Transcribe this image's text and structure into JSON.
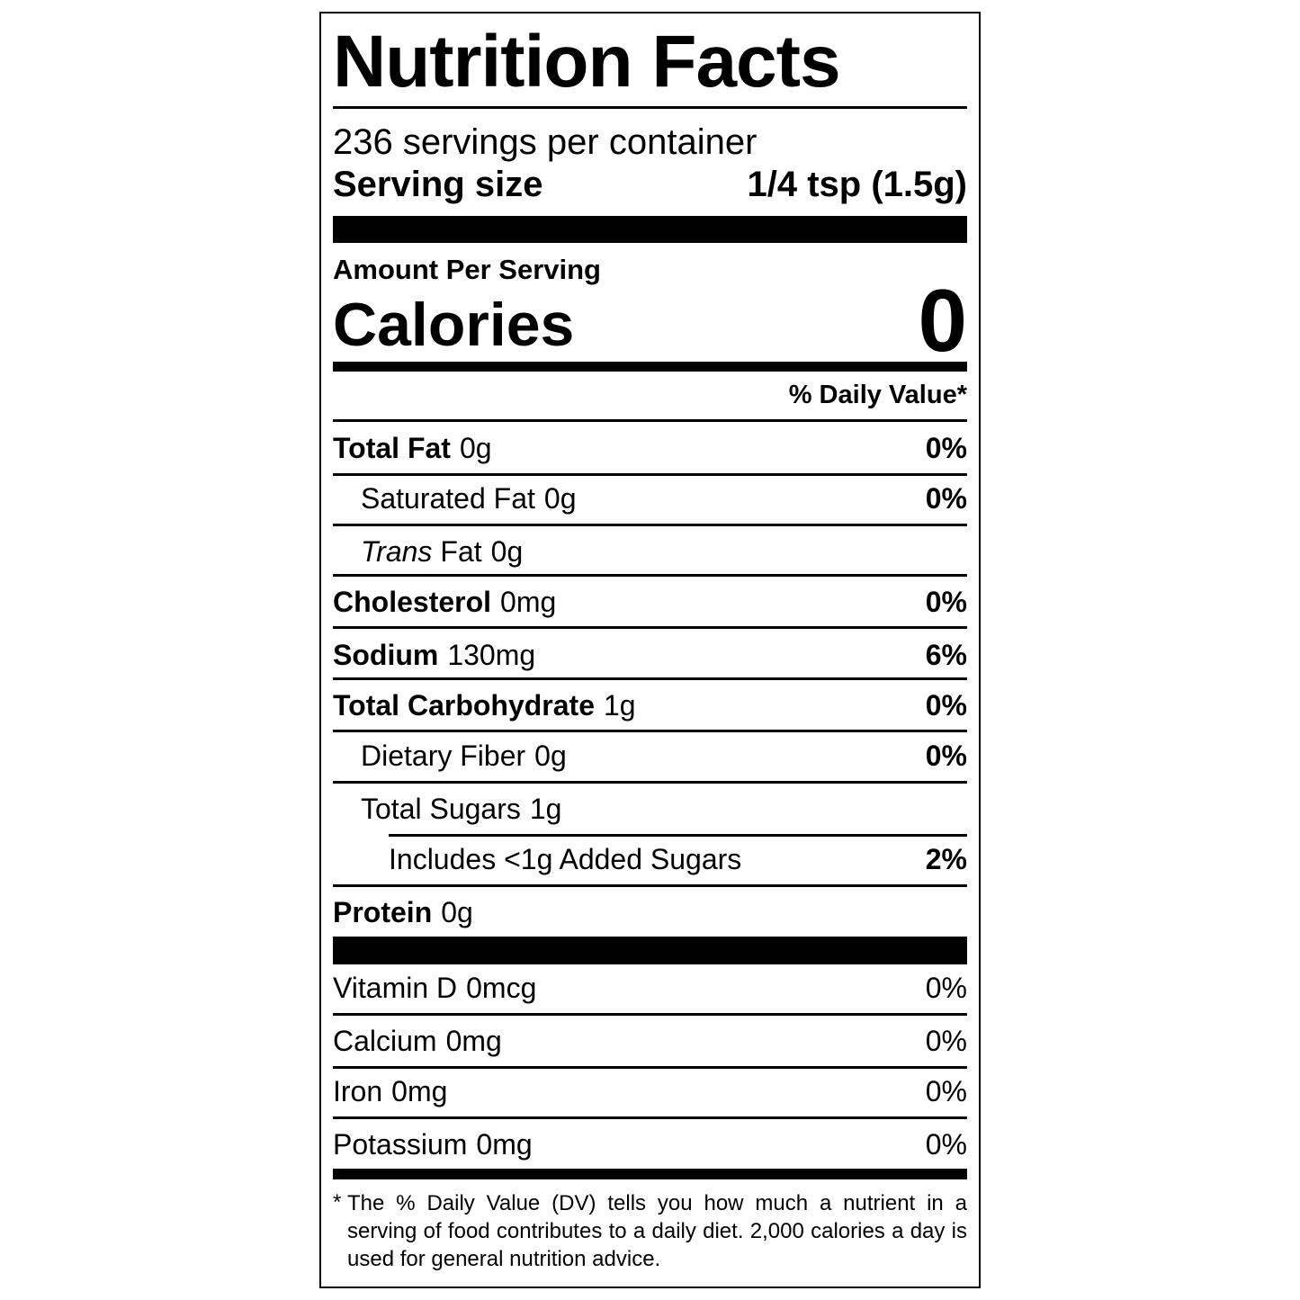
{
  "header": {
    "title": "Nutrition Facts",
    "servings": "236 servings per container",
    "serving_size_label": "Serving size",
    "serving_size_value": "1/4 tsp (1.5g)"
  },
  "calories": {
    "amount_per_serving": "Amount Per Serving",
    "label": "Calories",
    "value": "0"
  },
  "daily_value_header": "% Daily Value*",
  "nutrients": [
    {
      "name": "Total Fat",
      "amount": "0g",
      "dv": "0%"
    },
    {
      "name": "Saturated Fat",
      "amount": "0g",
      "dv": "0%"
    },
    {
      "name_italic": "Trans",
      "name": "Fat",
      "amount": "0g"
    },
    {
      "name": "Cholesterol",
      "amount": "0mg",
      "dv": "0%"
    },
    {
      "name": "Sodium",
      "amount": "130mg",
      "dv": "6%"
    },
    {
      "name": "Total Carbohydrate",
      "amount": "1g",
      "dv": "0%"
    },
    {
      "name": "Dietary Fiber",
      "amount": "0g",
      "dv": "0%"
    },
    {
      "name": "Total Sugars",
      "amount": "1g"
    },
    {
      "name": "Includes <1g Added Sugars",
      "dv": "2%"
    },
    {
      "name": "Protein",
      "amount": "0g"
    }
  ],
  "vitamins": [
    {
      "name": "Vitamin D",
      "amount": "0mcg",
      "dv": "0%"
    },
    {
      "name": "Calcium",
      "amount": "0mg",
      "dv": "0%"
    },
    {
      "name": "Iron",
      "amount": "0mg",
      "dv": "0%"
    },
    {
      "name": "Potassium",
      "amount": "0mg",
      "dv": "0%"
    }
  ],
  "footnote": {
    "marker": "*",
    "text": "The % Daily Value (DV) tells you how much a nutrient in a serving of food contributes to a daily diet. 2,000 calories a day is used for general nutrition advice."
  }
}
